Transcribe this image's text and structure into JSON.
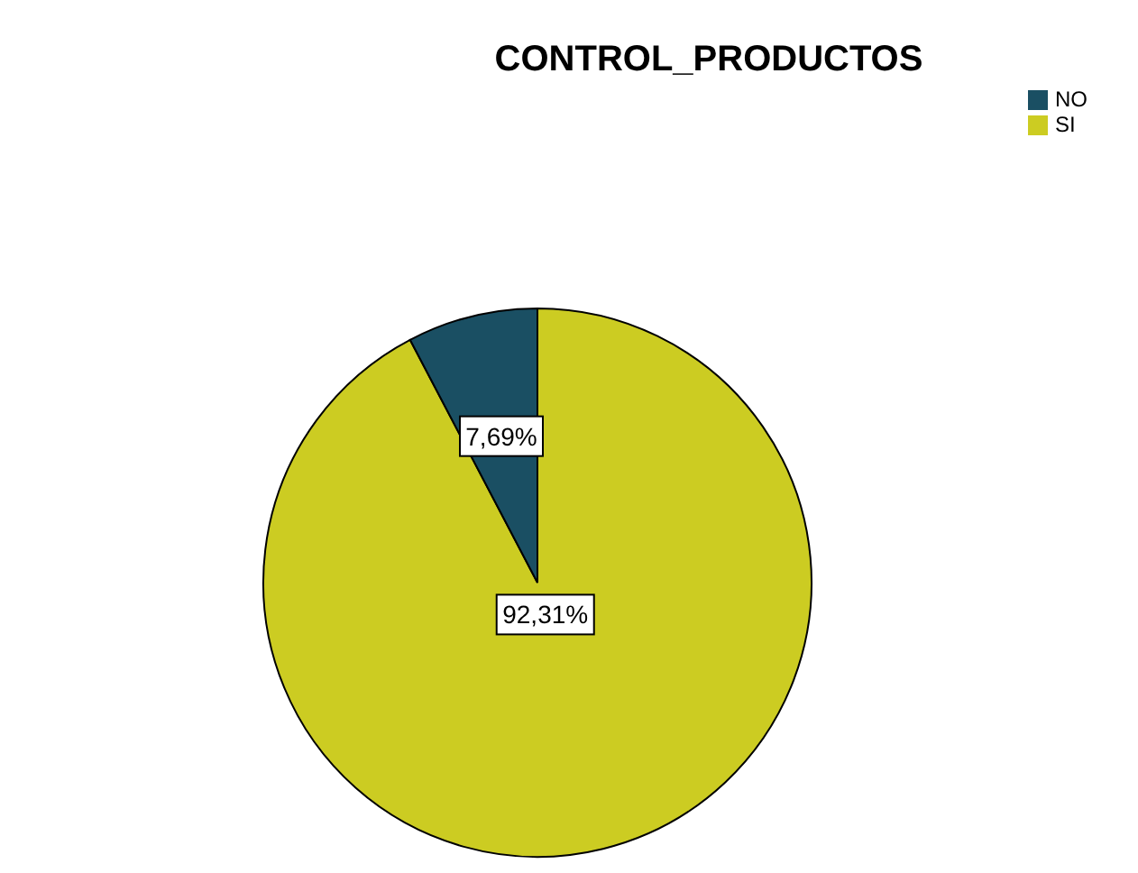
{
  "chart_data": {
    "type": "pie",
    "title": "CONTROL_PRODUCTOS",
    "categories": [
      "SI",
      "NO"
    ],
    "values": [
      92.31,
      7.69
    ],
    "colors": [
      "#cccc22",
      "#1a4f63"
    ],
    "value_labels": [
      "92,31%",
      "7,69%"
    ],
    "legend": "top right"
  }
}
